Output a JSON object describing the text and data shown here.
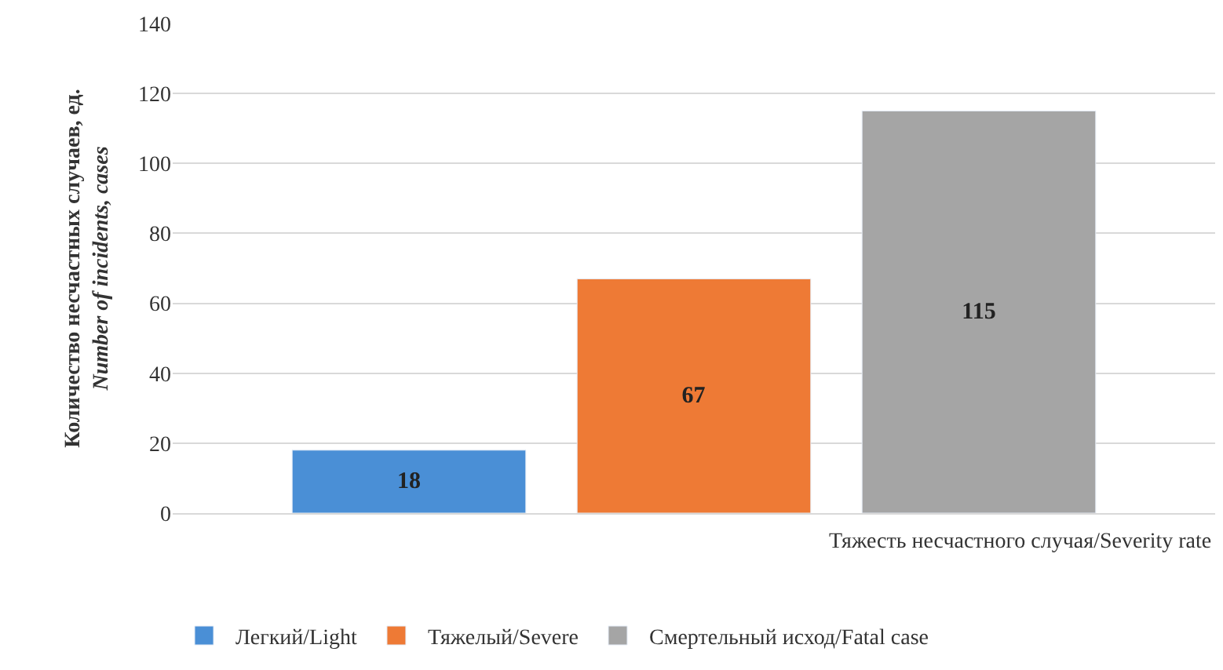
{
  "chart_data": {
    "type": "bar",
    "ylabel": "Количество несчастных случаев, ед.\nNumber of incidents, cases",
    "xlabel": "Тяжесть несчастного случая/Severity rate",
    "categories": [
      null
    ],
    "series": [
      {
        "name": "Легкий/Light",
        "color": "#4a8fd6",
        "values": [
          18
        ]
      },
      {
        "name": "Тяжелый/Severe",
        "color": "#ee7a35",
        "values": [
          67
        ]
      },
      {
        "name": "Смертельный исход/Fatal case",
        "color": "#a5a5a5",
        "values": [
          115
        ]
      }
    ],
    "ylim": [
      0,
      140
    ],
    "yticks": [
      0,
      20,
      40,
      60,
      80,
      100,
      120,
      140
    ],
    "grid": "y",
    "legend": "bottom",
    "data_labels": true
  }
}
